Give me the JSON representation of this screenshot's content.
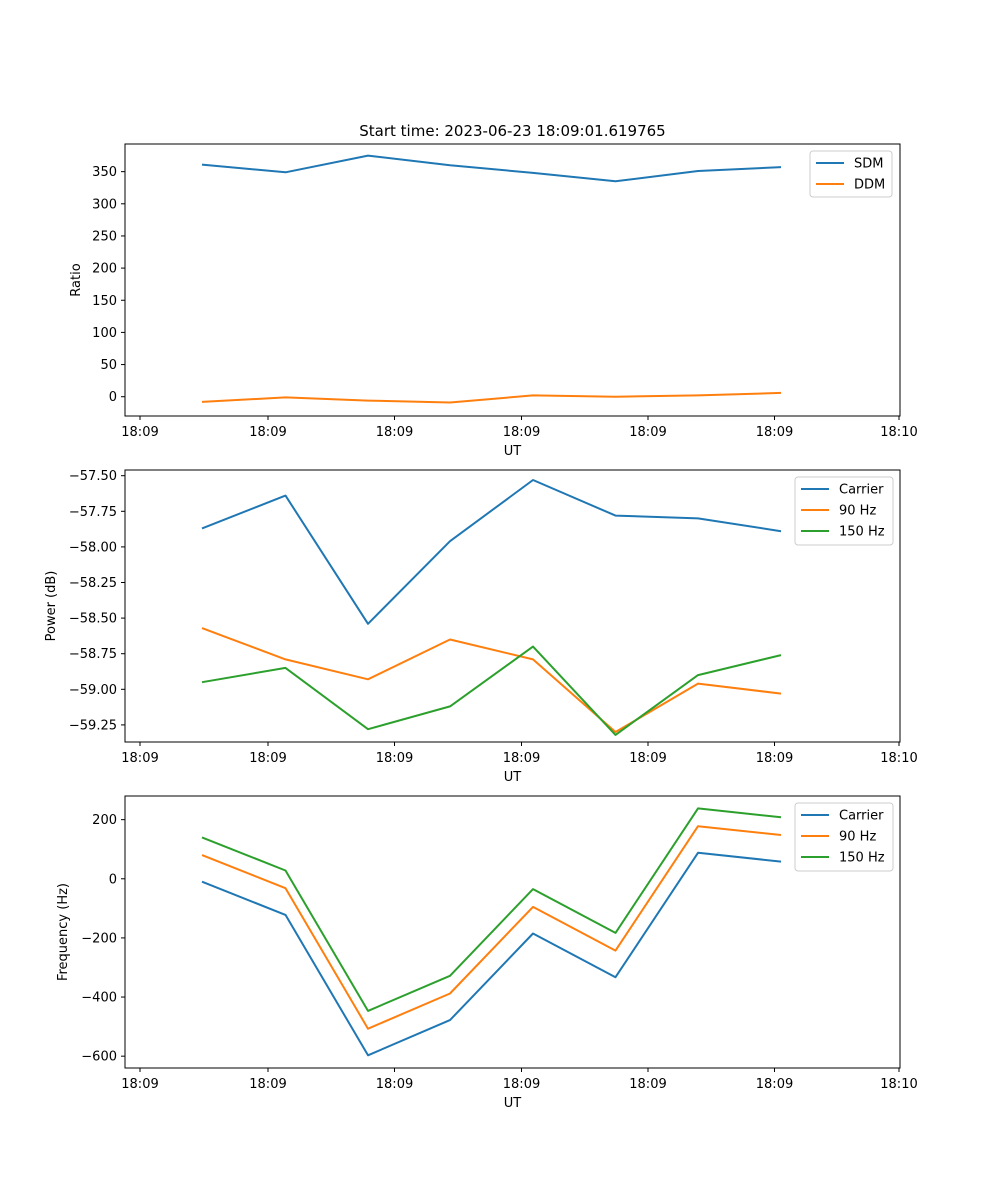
{
  "figure": {
    "title": "Start time: 2023-06-23 18:09:01.619765"
  },
  "colors": {
    "blue": "#1f77b4",
    "orange": "#ff7f0e",
    "green": "#2ca02c"
  },
  "chart_data": [
    {
      "type": "line",
      "title": "Start time: 2023-06-23 18:09:01.619765",
      "xlabel": "UT",
      "ylabel": "Ratio",
      "x": [
        "18:09:01.6",
        "18:09:02.3",
        "18:09:03.0",
        "18:09:03.6",
        "18:09:04.3",
        "18:09:05.0",
        "18:09:05.6",
        "18:09:06.3"
      ],
      "xticks": [
        "18:09",
        "18:09",
        "18:09",
        "18:09",
        "18:09",
        "18:09",
        "18:09",
        "18:10"
      ],
      "yticks": [
        "0",
        "50",
        "100",
        "150",
        "200",
        "250",
        "300",
        "350"
      ],
      "ylim": [
        -30,
        393
      ],
      "grid": false,
      "legend_position": "top-right",
      "series": [
        {
          "name": "SDM",
          "color": "#1f77b4",
          "values": [
            361,
            349,
            375,
            360,
            348,
            335,
            351,
            357
          ]
        },
        {
          "name": "DDM",
          "color": "#ff7f0e",
          "values": [
            -8,
            -1,
            -6,
            -9,
            2,
            0,
            2,
            6
          ]
        }
      ]
    },
    {
      "type": "line",
      "xlabel": "UT",
      "ylabel": "Power (dB)",
      "x": [
        "18:09:01.6",
        "18:09:02.3",
        "18:09:03.0",
        "18:09:03.6",
        "18:09:04.3",
        "18:09:05.0",
        "18:09:05.6",
        "18:09:06.3"
      ],
      "xticks": [
        "18:09",
        "18:09",
        "18:09",
        "18:09",
        "18:09",
        "18:09",
        "18:09",
        "18:10"
      ],
      "yticks": [
        "−59.25",
        "−59.00",
        "−58.75",
        "−58.50",
        "−58.25",
        "−58.00",
        "−57.75",
        "−57.50"
      ],
      "ylim": [
        -59.37,
        -57.46
      ],
      "grid": false,
      "legend_position": "top-right",
      "series": [
        {
          "name": "Carrier",
          "color": "#1f77b4",
          "values": [
            -57.87,
            -57.64,
            -58.54,
            -57.96,
            -57.53,
            -57.78,
            -57.8,
            -57.89
          ]
        },
        {
          "name": "90 Hz",
          "color": "#ff7f0e",
          "values": [
            -58.57,
            -58.79,
            -58.93,
            -58.65,
            -58.79,
            -59.3,
            -58.96,
            -59.03
          ]
        },
        {
          "name": "150 Hz",
          "color": "#2ca02c",
          "values": [
            -58.95,
            -58.85,
            -59.28,
            -59.12,
            -58.7,
            -59.32,
            -58.9,
            -58.76
          ]
        }
      ]
    },
    {
      "type": "line",
      "xlabel": "UT",
      "ylabel": "Frequency (Hz)",
      "x": [
        "18:09:01.6",
        "18:09:02.3",
        "18:09:03.0",
        "18:09:03.6",
        "18:09:04.3",
        "18:09:05.0",
        "18:09:05.6",
        "18:09:06.3"
      ],
      "xticks": [
        "18:09",
        "18:09",
        "18:09",
        "18:09",
        "18:09",
        "18:09",
        "18:09",
        "18:10"
      ],
      "yticks": [
        "−600",
        "−400",
        "−200",
        "0",
        "200"
      ],
      "ylim": [
        -640,
        280
      ],
      "grid": false,
      "legend_position": "top-right",
      "series": [
        {
          "name": "Carrier",
          "color": "#1f77b4",
          "values": [
            -10,
            -122,
            -597,
            -478,
            -185,
            -333,
            88,
            58
          ]
        },
        {
          "name": "90 Hz",
          "color": "#ff7f0e",
          "values": [
            80,
            -32,
            -507,
            -388,
            -95,
            -243,
            178,
            148
          ]
        },
        {
          "name": "150 Hz",
          "color": "#2ca02c",
          "values": [
            140,
            28,
            -447,
            -328,
            -35,
            -183,
            238,
            208
          ]
        }
      ]
    }
  ]
}
